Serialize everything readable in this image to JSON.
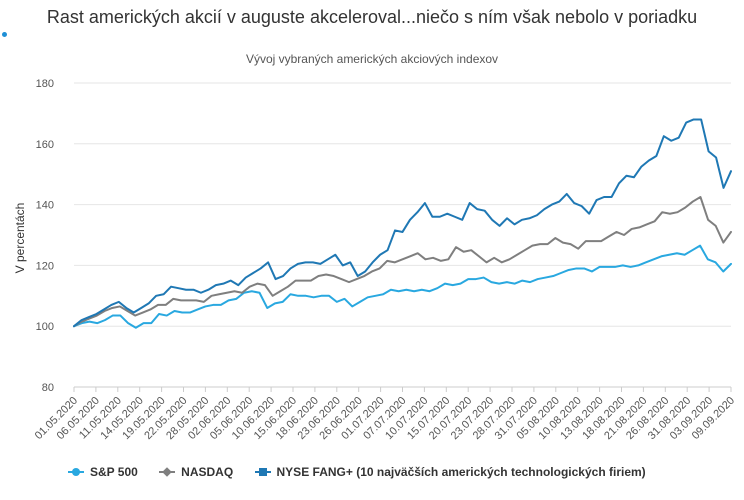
{
  "chart_data": {
    "type": "line",
    "title": "Rast amerických akcií v auguste akceleroval...niečo s ním však nebolo v poriadku",
    "subtitle": "Vývoj vybraných amerických akciových indexov",
    "ylabel": "V percentách",
    "ylim": [
      80,
      180
    ],
    "yticks": [
      80,
      100,
      120,
      140,
      160,
      180
    ],
    "grid": true,
    "legend_position": "bottom",
    "x_tick_labels": [
      "01.05.2020",
      "06.05.2020",
      "11.05.2020",
      "14.05.2020",
      "19.05.2020",
      "22.05.2020",
      "28.05.2020",
      "02.06.2020",
      "05.06.2020",
      "10.06.2020",
      "15.06.2020",
      "18.06.2020",
      "23.06.2020",
      "26.06.2020",
      "01.07.2020",
      "07.07.2020",
      "10.07.2020",
      "15.07.2020",
      "20.07.2020",
      "23.07.2020",
      "28.07.2020",
      "31.07.2020",
      "05.08.2020",
      "10.08.2020",
      "13.08.2020",
      "18.08.2020",
      "21.08.2020",
      "26.08.2020",
      "31.08.2020",
      "03.09.2020",
      "09.09.2020"
    ],
    "series": [
      {
        "name": "S&P 500",
        "color": "#29a8e0",
        "marker": "circle",
        "values": [
          100,
          101,
          101.5,
          101,
          102,
          103.5,
          103.5,
          101,
          99.5,
          101,
          101,
          104,
          103.5,
          105,
          104.5,
          104.5,
          105.5,
          106.5,
          107,
          107,
          108.5,
          109,
          111,
          111.5,
          111,
          106,
          107.5,
          108,
          110.5,
          110,
          110,
          109.5,
          110,
          110,
          108,
          109,
          106.5,
          108,
          109.5,
          110,
          110.5,
          112,
          111.5,
          112,
          111.5,
          112,
          111.5,
          112.5,
          114,
          113.5,
          114,
          115.5,
          115.5,
          116,
          114.5,
          114,
          114.5,
          114,
          115,
          114.5,
          115.5,
          116,
          116.5,
          117.5,
          118.5,
          119,
          119,
          118,
          119.5,
          119.5,
          119.5,
          120,
          119.5,
          120,
          121,
          122,
          123,
          123.5,
          124,
          123.5,
          125,
          126.5,
          122,
          121,
          118,
          120.5
        ]
      },
      {
        "name": "NASDAQ",
        "color": "#7f7f7f",
        "marker": "diamond",
        "values": [
          100,
          101.5,
          102.5,
          103.5,
          105,
          106,
          106.5,
          105,
          103.5,
          104.5,
          105.5,
          107,
          107,
          109,
          108.5,
          108.5,
          108.5,
          108,
          110,
          110.5,
          111,
          111.5,
          111,
          113,
          114,
          113.5,
          110,
          111.5,
          113,
          115,
          115,
          115,
          116.5,
          117,
          116.5,
          115.5,
          114.5,
          115.5,
          116.5,
          118,
          119,
          121.5,
          121,
          122,
          123,
          124,
          122,
          122.5,
          121.5,
          122,
          126,
          124.5,
          125,
          123,
          121,
          122.5,
          121,
          122,
          123.5,
          125,
          126.5,
          127,
          127,
          129,
          127.5,
          127,
          125.5,
          128,
          128,
          128,
          129.5,
          131,
          130,
          132,
          132.5,
          133.5,
          134.5,
          137.5,
          137,
          137.5,
          139,
          141,
          142.5,
          135,
          133,
          127.5,
          131
        ]
      },
      {
        "name": "NYSE FANG+ (10 najväčších amerických technologických firiem)",
        "color": "#1f78b4",
        "marker": "square",
        "values": [
          100,
          102,
          103,
          104,
          105.5,
          107,
          108,
          106,
          104.5,
          106,
          107.5,
          110,
          110.5,
          113,
          112.5,
          112,
          112,
          111,
          112,
          113.5,
          114,
          115,
          113.5,
          116,
          117.5,
          119,
          121,
          115.5,
          116.5,
          119,
          120.5,
          121,
          121,
          120.5,
          122,
          123.5,
          120,
          121,
          116.5,
          118,
          121,
          123.5,
          125,
          131.5,
          131,
          135,
          137.5,
          140.5,
          136,
          136,
          137,
          136,
          135,
          140.5,
          138.5,
          138,
          135,
          133,
          135.5,
          133.5,
          135,
          135.5,
          136.5,
          138.5,
          140,
          141,
          143.5,
          140.5,
          139.5,
          137,
          141.5,
          142.5,
          142.5,
          147,
          149.5,
          149,
          152.5,
          154.5,
          156,
          162.5,
          161,
          162,
          167,
          168,
          168,
          157.5,
          155.5,
          145.5,
          151
        ]
      }
    ]
  }
}
